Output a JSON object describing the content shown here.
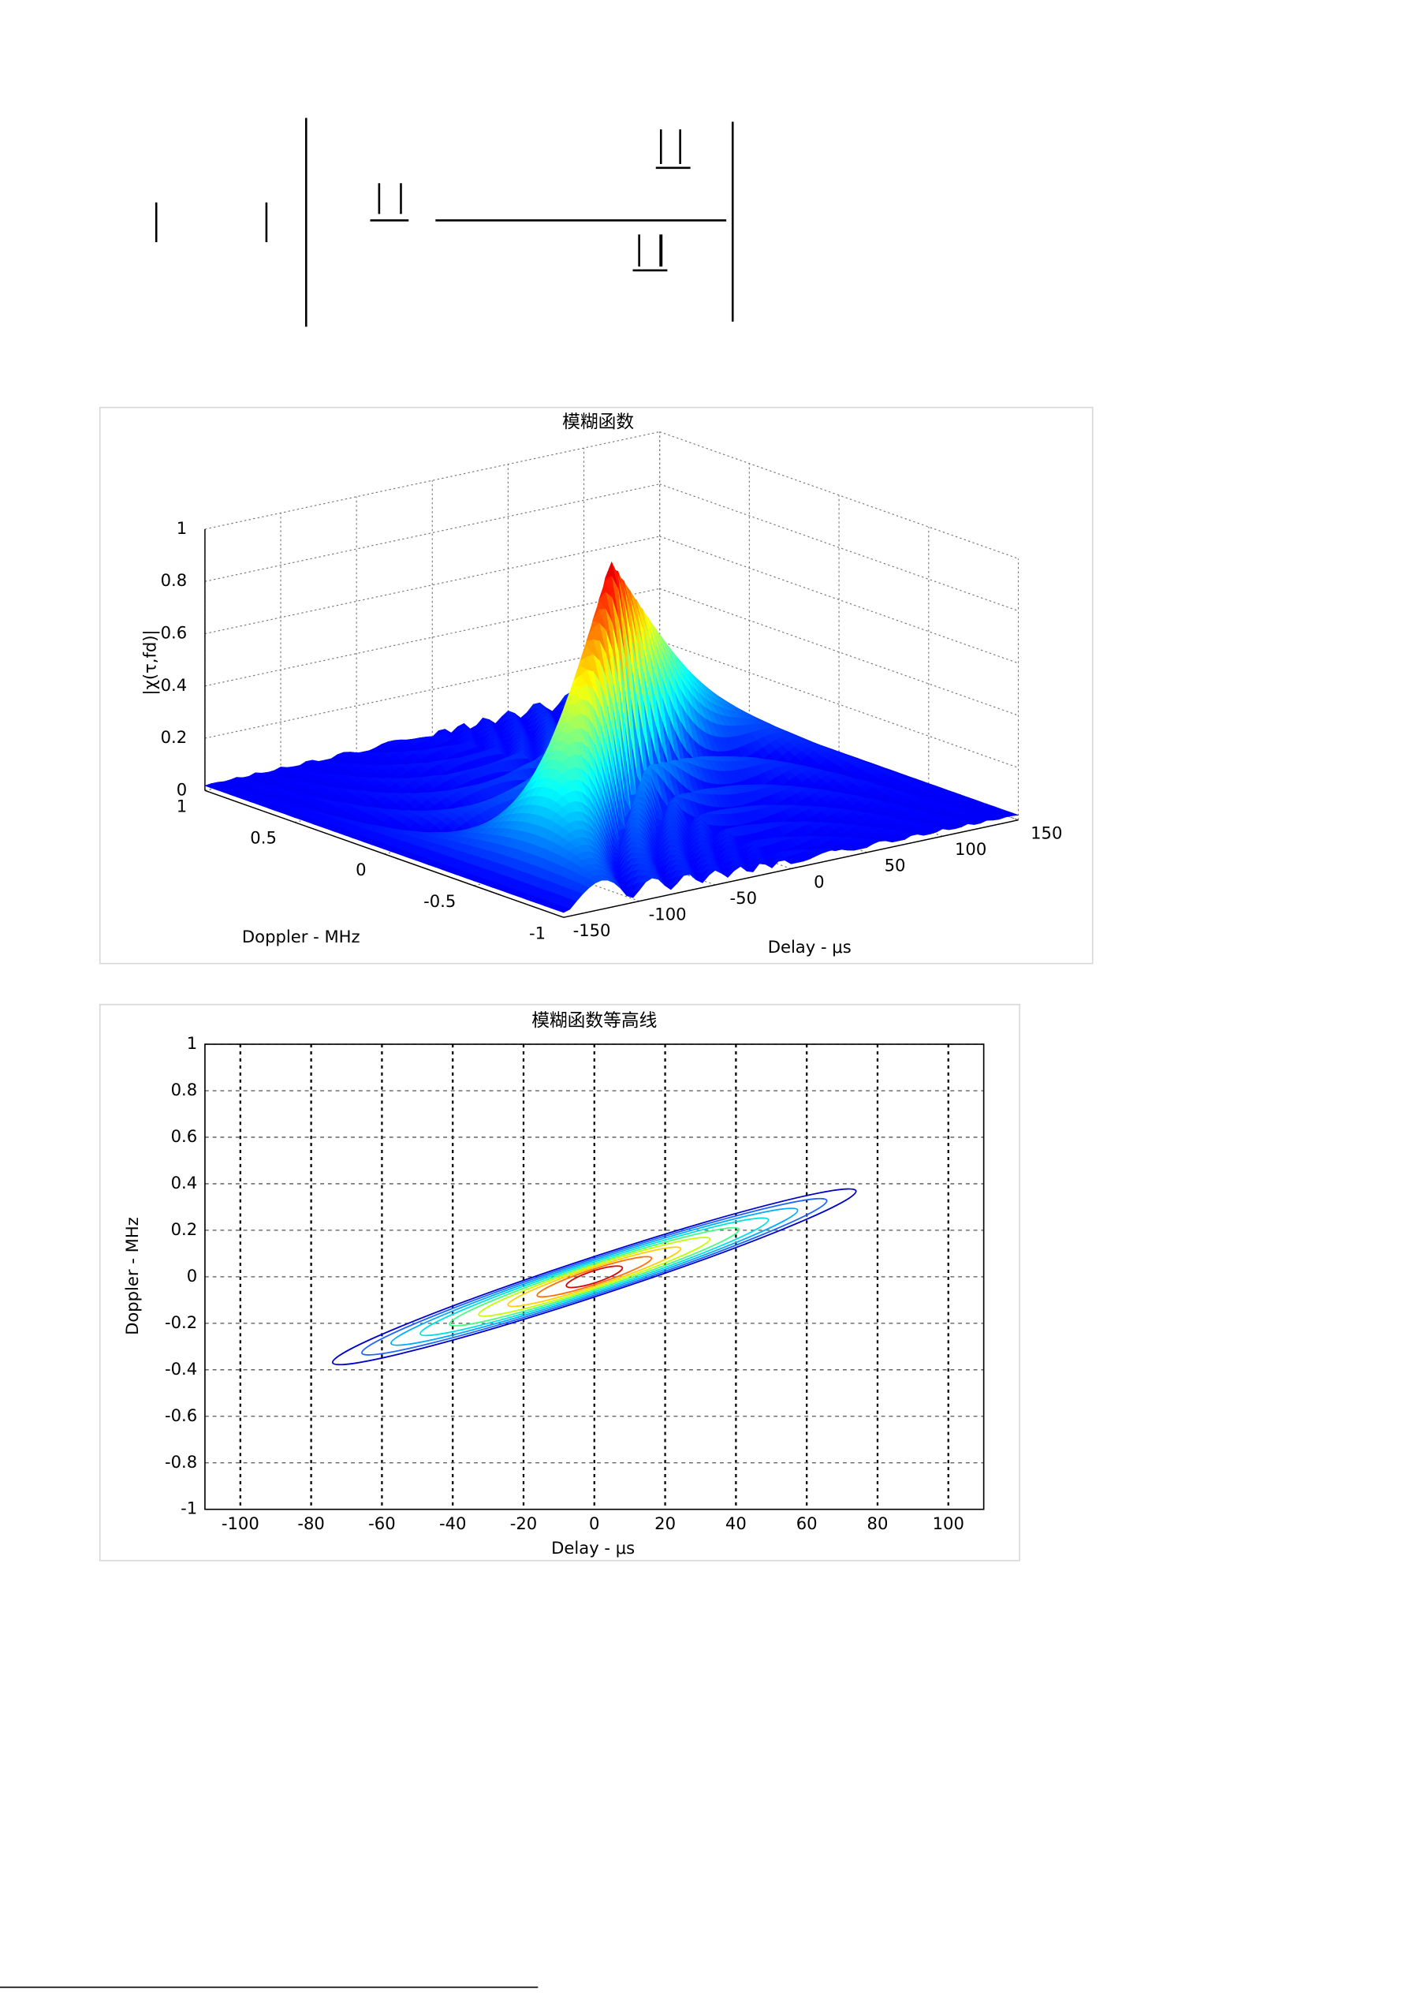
{
  "chart_data": [
    {
      "type": "surface",
      "title": "模糊函数",
      "xlabel": "Delay - μs",
      "ylabel": "Doppler - MHz",
      "zlabel": "|χ(τ,fd)|",
      "xlim": [
        -150,
        150
      ],
      "xticks": [
        -150,
        -100,
        -50,
        0,
        50,
        100,
        150
      ],
      "ylim": [
        -1,
        1
      ],
      "yticks": [
        -1,
        -0.5,
        0,
        0.5,
        1
      ],
      "zlim": [
        0,
        1
      ],
      "zticks": [
        0,
        0.2,
        0.4,
        0.6,
        0.8,
        1
      ],
      "grid": true
    },
    {
      "type": "contour",
      "title": "模糊函数等高线",
      "xlabel": "Delay - μs",
      "ylabel": "Doppler - MHz",
      "xlim": [
        -110,
        110
      ],
      "xticks": [
        -100,
        -80,
        -60,
        -40,
        -20,
        0,
        20,
        40,
        60,
        80,
        100
      ],
      "ylim": [
        -1,
        1
      ],
      "yticks": [
        -1,
        -0.8,
        -0.6,
        -0.4,
        -0.2,
        0,
        0.2,
        0.4,
        0.6,
        0.8,
        1
      ],
      "grid": true
    }
  ]
}
